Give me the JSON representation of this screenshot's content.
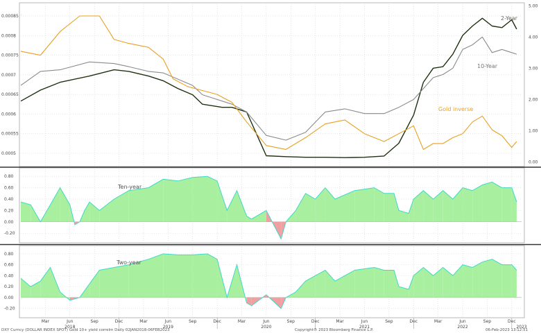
{
  "chart_data": [
    {
      "type": "line",
      "panel": "top",
      "left_axis": {
        "ticks": [
          "0.0005",
          "0.00055",
          "0.0006",
          "0.00065",
          "0.0007",
          "0.00075",
          "0.0008",
          "0.00085"
        ],
        "values": [
          0.0005,
          0.00055,
          0.0006,
          0.00065,
          0.0007,
          0.00075,
          0.0008,
          0.00085
        ],
        "range": [
          0.00047,
          0.00088
        ]
      },
      "right_axis": {
        "ticks": [
          "0.00",
          "1.00",
          "2.00",
          "3.00",
          "4.00",
          "5.00"
        ],
        "values": [
          0,
          1,
          2,
          3,
          4,
          5
        ],
        "range": [
          -0.1,
          5.05
        ]
      },
      "series": [
        {
          "name": "2-Year",
          "axis": "right",
          "color": "#1e3010",
          "x": [
            0,
            0.2,
            0.4,
            0.7,
            0.95,
            1.1,
            1.3,
            1.45,
            1.6,
            1.75,
            1.85,
            1.95,
            2.05,
            2.15,
            2.3,
            2.5,
            2.7,
            2.9,
            3.1,
            3.3,
            3.5,
            3.7,
            3.85,
            4.0,
            4.1,
            4.2,
            4.3,
            4.4,
            4.5,
            4.6,
            4.7,
            4.8,
            4.9,
            5.0,
            5.05
          ],
          "y": [
            1.95,
            2.3,
            2.55,
            2.75,
            2.95,
            2.9,
            2.75,
            2.6,
            2.35,
            2.15,
            1.85,
            1.8,
            1.75,
            1.75,
            1.6,
            0.2,
            0.17,
            0.15,
            0.15,
            0.14,
            0.15,
            0.19,
            0.6,
            1.5,
            2.55,
            3.0,
            3.05,
            3.45,
            4.05,
            4.35,
            4.6,
            4.35,
            4.3,
            4.55,
            4.25
          ]
        },
        {
          "name": "10-Year",
          "axis": "right",
          "color": "#8a8a8a",
          "x": [
            0,
            0.2,
            0.4,
            0.7,
            0.95,
            1.1,
            1.3,
            1.45,
            1.6,
            1.75,
            1.85,
            1.95,
            2.05,
            2.15,
            2.3,
            2.5,
            2.7,
            2.9,
            3.1,
            3.3,
            3.5,
            3.7,
            3.85,
            4.0,
            4.1,
            4.2,
            4.3,
            4.4,
            4.5,
            4.6,
            4.7,
            4.8,
            4.9,
            5.0,
            5.05
          ],
          "y": [
            2.45,
            2.9,
            2.95,
            3.2,
            3.15,
            3.05,
            2.9,
            2.85,
            2.65,
            2.45,
            2.15,
            2.05,
            1.95,
            1.85,
            1.6,
            0.85,
            0.7,
            0.95,
            1.6,
            1.7,
            1.55,
            1.55,
            1.75,
            2.0,
            2.35,
            2.7,
            2.8,
            3.0,
            3.6,
            3.75,
            4.0,
            3.5,
            3.6,
            3.5,
            3.45
          ]
        },
        {
          "name": "Gold inverse",
          "axis": "left",
          "color": "#e8a020",
          "x": [
            0,
            0.2,
            0.4,
            0.6,
            0.8,
            0.95,
            1.1,
            1.3,
            1.45,
            1.55,
            1.7,
            1.85,
            2.0,
            2.15,
            2.3,
            2.5,
            2.7,
            2.9,
            3.1,
            3.3,
            3.5,
            3.7,
            3.85,
            4.0,
            4.1,
            4.2,
            4.3,
            4.4,
            4.5,
            4.6,
            4.7,
            4.8,
            4.9,
            5.0,
            5.05
          ],
          "y": [
            0.00076,
            0.00075,
            0.00081,
            0.00085,
            0.00085,
            0.00079,
            0.00078,
            0.00077,
            0.00074,
            0.00069,
            0.00067,
            0.00066,
            0.00065,
            0.00063,
            0.00058,
            0.00052,
            0.00051,
            0.00054,
            0.000575,
            0.000585,
            0.00055,
            0.00053,
            0.00055,
            0.00057,
            0.00051,
            0.000525,
            0.000525,
            0.00054,
            0.00055,
            0.00058,
            0.000595,
            0.00056,
            0.000545,
            0.000515,
            0.00053
          ]
        }
      ],
      "labels": [
        "2-Year",
        "10-Year",
        "Gold inverse"
      ]
    },
    {
      "type": "area",
      "panel": "middle",
      "label": "Ten-year",
      "axis": {
        "ticks": [
          "-0.20",
          "0.00",
          "0.20",
          "0.40",
          "0.60",
          "0.80"
        ],
        "values": [
          -0.2,
          0,
          0.2,
          0.4,
          0.6,
          0.8
        ],
        "range": [
          -0.32,
          0.9
        ]
      },
      "x": [
        0,
        0.1,
        0.2,
        0.3,
        0.4,
        0.5,
        0.55,
        0.6,
        0.65,
        0.7,
        0.8,
        0.95,
        1.1,
        1.3,
        1.45,
        1.6,
        1.75,
        1.9,
        2.0,
        2.1,
        2.2,
        2.3,
        2.35,
        2.5,
        2.65,
        2.7,
        2.8,
        2.9,
        3.0,
        3.1,
        3.2,
        3.4,
        3.6,
        3.7,
        3.8,
        3.85,
        3.95,
        4.0,
        4.1,
        4.2,
        4.3,
        4.4,
        4.5,
        4.6,
        4.7,
        4.8,
        4.9,
        5.0,
        5.05
      ],
      "values": [
        0.35,
        0.3,
        0.0,
        0.3,
        0.6,
        0.3,
        -0.05,
        0.0,
        0.2,
        0.35,
        0.2,
        0.4,
        0.55,
        0.6,
        0.75,
        0.72,
        0.78,
        0.8,
        0.72,
        0.2,
        0.55,
        0.1,
        0.05,
        0.2,
        -0.3,
        0.0,
        0.2,
        0.5,
        0.4,
        0.6,
        0.4,
        0.55,
        0.6,
        0.5,
        0.5,
        0.2,
        0.15,
        0.4,
        0.55,
        0.4,
        0.55,
        0.4,
        0.6,
        0.55,
        0.65,
        0.7,
        0.6,
        0.6,
        0.35
      ]
    },
    {
      "type": "area",
      "panel": "bottom",
      "label": "Two-year",
      "axis": {
        "ticks": [
          "-0.20",
          "0.00",
          "0.20",
          "0.40",
          "0.60",
          "0.80"
        ],
        "values": [
          -0.2,
          0,
          0.2,
          0.4,
          0.6,
          0.8
        ],
        "range": [
          -0.32,
          0.9
        ]
      },
      "x": [
        0,
        0.1,
        0.2,
        0.3,
        0.4,
        0.5,
        0.6,
        0.7,
        0.8,
        0.95,
        1.1,
        1.3,
        1.45,
        1.6,
        1.75,
        1.9,
        2.0,
        2.1,
        2.2,
        2.3,
        2.35,
        2.5,
        2.65,
        2.7,
        2.8,
        2.9,
        3.0,
        3.1,
        3.2,
        3.4,
        3.6,
        3.7,
        3.8,
        3.85,
        3.95,
        4.0,
        4.1,
        4.2,
        4.3,
        4.4,
        4.5,
        4.6,
        4.7,
        4.8,
        4.9,
        5.0,
        5.05
      ],
      "values": [
        0.35,
        0.2,
        0.3,
        0.55,
        0.1,
        -0.05,
        0.0,
        0.25,
        0.5,
        0.55,
        0.6,
        0.7,
        0.8,
        0.78,
        0.78,
        0.8,
        0.7,
        0.0,
        0.6,
        -0.1,
        -0.15,
        0.05,
        -0.2,
        0.0,
        0.1,
        0.3,
        0.4,
        0.5,
        0.3,
        0.5,
        0.55,
        0.5,
        0.5,
        0.2,
        0.15,
        0.4,
        0.55,
        0.4,
        0.55,
        0.4,
        0.6,
        0.55,
        0.65,
        0.7,
        0.6,
        0.6,
        0.5
      ]
    }
  ],
  "x_axis": {
    "months": [
      {
        "x": 0.25,
        "label": "Mar"
      },
      {
        "x": 0.5,
        "label": "Jun"
      },
      {
        "x": 0.75,
        "label": "Sep"
      },
      {
        "x": 1.0,
        "label": "Dec"
      },
      {
        "x": 1.25,
        "label": "Mar"
      },
      {
        "x": 1.5,
        "label": "Jun"
      },
      {
        "x": 1.75,
        "label": "Sep"
      },
      {
        "x": 2.0,
        "label": "Dec"
      },
      {
        "x": 2.25,
        "label": "Mar"
      },
      {
        "x": 2.5,
        "label": "Jun"
      },
      {
        "x": 2.75,
        "label": "Sep"
      },
      {
        "x": 3.0,
        "label": "Dec"
      },
      {
        "x": 3.25,
        "label": "Mar"
      },
      {
        "x": 3.5,
        "label": "Jun"
      },
      {
        "x": 3.75,
        "label": "Sep"
      },
      {
        "x": 4.0,
        "label": "Dec"
      },
      {
        "x": 4.25,
        "label": "Mar"
      },
      {
        "x": 4.5,
        "label": "Jun"
      },
      {
        "x": 4.75,
        "label": "Sep"
      },
      {
        "x": 5.0,
        "label": "Dec"
      }
    ],
    "years": [
      {
        "x": 0.5,
        "label": "2018"
      },
      {
        "x": 1.5,
        "label": "2019"
      },
      {
        "x": 2.5,
        "label": "2020"
      },
      {
        "x": 3.5,
        "label": "2021"
      },
      {
        "x": 4.5,
        "label": "2022"
      },
      {
        "x": 5.1,
        "label": "2023"
      }
    ],
    "range": [
      0,
      5.1
    ]
  },
  "footer": {
    "left": "DXY Curncy (DOLLAR INDEX SPOT) Gold 10+ yield correlm  Daily 02JAN2018-06FEB2023",
    "center": "Copyright® 2023 Bloomberg Finance L.P.",
    "right": "06-Feb-2023 13:12:51"
  }
}
